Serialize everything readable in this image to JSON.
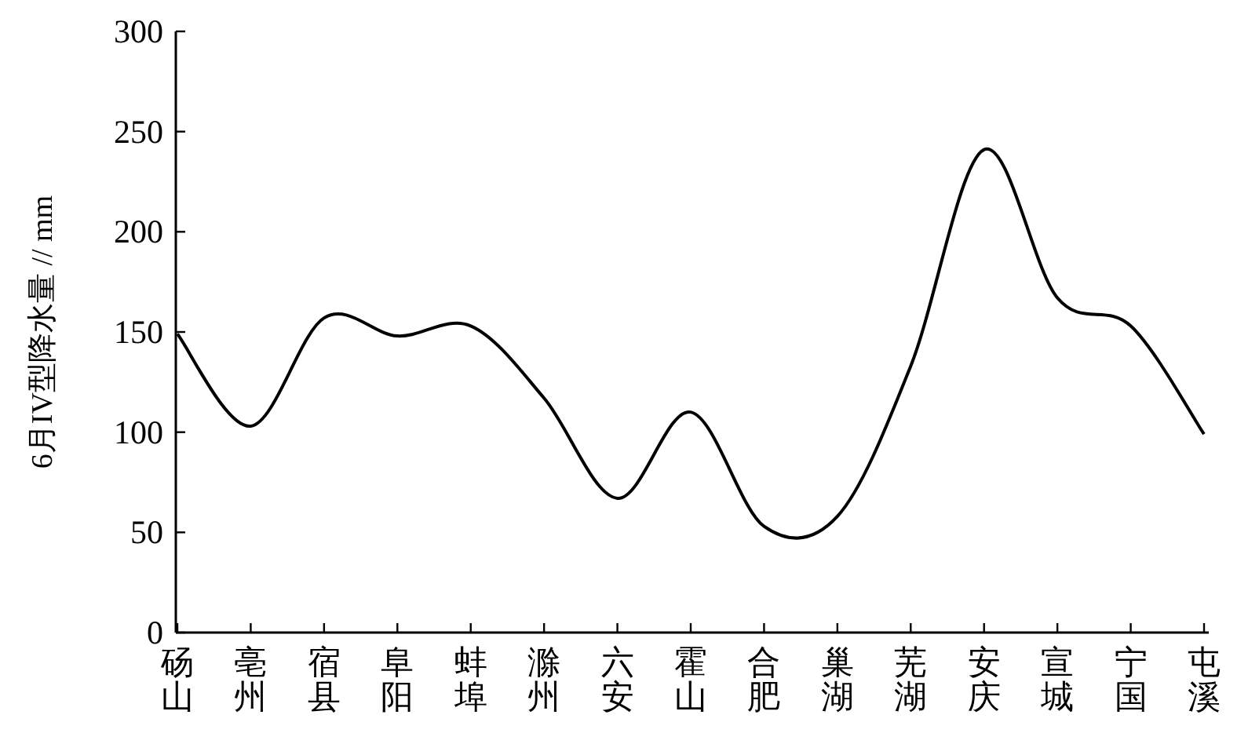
{
  "chart_data": {
    "type": "line",
    "ylabel": "6月IV型降水量 // mm",
    "categories": [
      "砀山",
      "亳州",
      "宿县",
      "阜阳",
      "蚌埠",
      "滁州",
      "六安",
      "霍山",
      "合肥",
      "巢湖",
      "芜湖",
      "安庆",
      "宣城",
      "宁国",
      "屯溪"
    ],
    "series": [
      {
        "color": "#000000",
        "values": [
          149,
          103,
          157,
          148,
          153,
          117,
          67,
          110,
          53,
          58,
          133,
          241,
          167,
          153,
          99
        ]
      }
    ],
    "ylim": [
      0,
      300
    ],
    "yticks": [
      0,
      50,
      100,
      150,
      200,
      250,
      300
    ],
    "marker": "none",
    "line_style": "solid"
  }
}
